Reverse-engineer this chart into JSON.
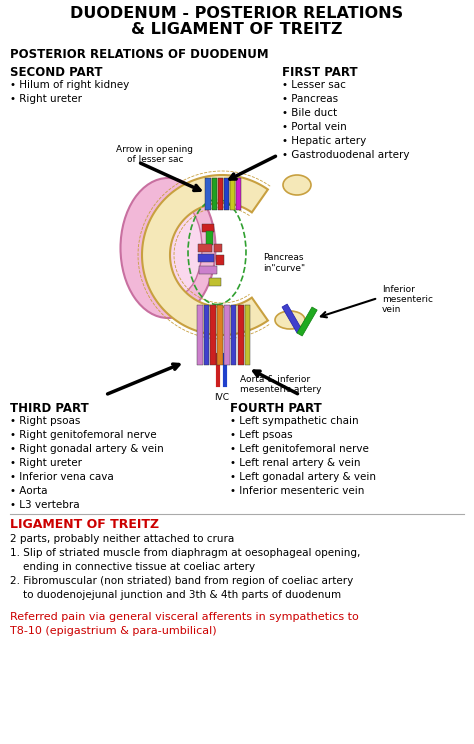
{
  "title_line1": "DUODENUM - POSTERIOR RELATIONS",
  "title_line2": "& LIGAMENT OF TREITZ",
  "subtitle": "POSTERIOR RELATIONS OF DUODENUM",
  "bg_color": "#ffffff",
  "black": "#000000",
  "red": "#cc0000",
  "second_part_title": "SECOND PART",
  "second_part_items": [
    "Hilum of right kidney",
    "Right ureter"
  ],
  "first_part_title": "FIRST PART",
  "first_part_items": [
    "Lesser sac",
    "Pancreas",
    "Bile duct",
    "Portal vein",
    "Hepatic artery",
    "Gastroduodenal artery"
  ],
  "third_part_title": "THIRD PART",
  "third_part_items": [
    "Right psoas",
    "Right genitofemoral nerve",
    "Right gonadal artery & vein",
    "Right ureter",
    "Inferior vena cava",
    "Aorta",
    "L3 vertebra"
  ],
  "fourth_part_title": "FOURTH PART",
  "fourth_part_items": [
    "Left sympathetic chain",
    "Left psoas",
    "Left genitofemoral nerve",
    "Left renal artery & vein",
    "Left gonadal artery & vein",
    "Inferior mesenteric vein"
  ],
  "ligament_title": "LIGAMENT OF TREITZ",
  "ligament_intro": "2 parts, probably neither attached to crura",
  "ligament_item1a": "1. Slip of striated muscle from diaphragm at oesophageal opening,",
  "ligament_item1b": "    ending in connective tissue at coeliac artery",
  "ligament_item2a": "2. Fibromuscular (non striated) band from region of coeliac artery",
  "ligament_item2b": "    to duodenojejunal junction and 3th & 4th parts of duodenum",
  "referred_pain_line1": "Referred pain via general visceral afferents in sympathetics to",
  "referred_pain_line2": "T8-10 (epigastrium & para-umbilical)",
  "arrow_label_line1": "Arrow in opening",
  "arrow_label_line2": "of lesser sac",
  "pancreas_label": "Pancreas\nin\"curve\"",
  "ivc_label": "IVC",
  "aorta_label_line1": "Aorta & inferior",
  "aorta_label_line2": "mesenteric artery",
  "inf_mes_line1": "Inferior",
  "inf_mes_line2": "mesenteric",
  "inf_mes_line3": "vein"
}
